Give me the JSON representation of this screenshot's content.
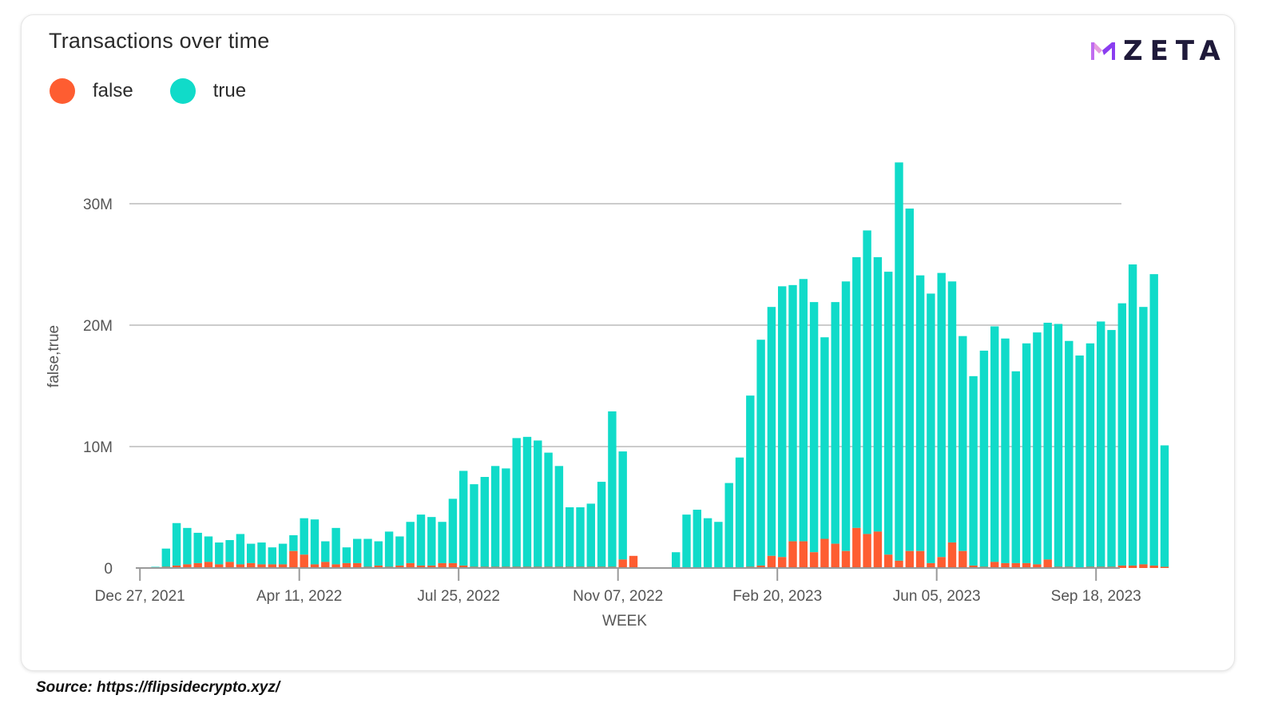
{
  "title": "Transactions over time",
  "source": "Source: https://flipsidecrypto.xyz/",
  "logo": {
    "text": "ZETA"
  },
  "colors": {
    "false": "#fe5d31",
    "true": "#10dbc9",
    "grid": "#cccccc"
  },
  "chart_data": {
    "type": "bar",
    "stacked": true,
    "title": "Transactions over time",
    "xlabel": "WEEK",
    "ylabel": "false,true",
    "ylim": [
      0,
      34000000
    ],
    "yticks": [
      0,
      10000000,
      20000000,
      30000000
    ],
    "ytick_labels": [
      "0",
      "10M",
      "20M",
      "30M"
    ],
    "xtick_labels": [
      "Dec 27, 2021",
      "Apr 11, 2022",
      "Jul 25, 2022",
      "Nov 07, 2022",
      "Feb 20, 2023",
      "Jun 05, 2023",
      "Sep 18, 2023"
    ],
    "xtick_index": [
      0,
      15,
      30,
      45,
      60,
      75,
      90
    ],
    "legend": "top-left",
    "grid": true,
    "series": [
      {
        "name": "false",
        "values": [
          0,
          0,
          100000,
          200000,
          300000,
          400000,
          500000,
          300000,
          500000,
          300000,
          400000,
          300000,
          300000,
          300000,
          1400000,
          1100000,
          300000,
          500000,
          300000,
          400000,
          400000,
          100000,
          200000,
          100000,
          200000,
          400000,
          200000,
          200000,
          400000,
          400000,
          200000,
          100000,
          100000,
          100000,
          100000,
          100000,
          100000,
          100000,
          100000,
          100000,
          100000,
          100000,
          100000,
          100000,
          100000,
          700000,
          1000000,
          0,
          0,
          0,
          0,
          0,
          0,
          0,
          0,
          0,
          0,
          100000,
          200000,
          1000000,
          900000,
          2200000,
          2200000,
          1300000,
          2400000,
          2000000,
          1400000,
          3300000,
          2800000,
          3000000,
          1100000,
          600000,
          1400000,
          1400000,
          400000,
          900000,
          2100000,
          1400000,
          200000,
          100000,
          500000,
          400000,
          400000,
          400000,
          300000,
          700000,
          100000,
          100000,
          0,
          100000,
          100000,
          100000,
          200000,
          200000,
          300000,
          200000,
          100000
        ]
      },
      {
        "name": "true",
        "values": [
          0,
          100000,
          1500000,
          3500000,
          3000000,
          2500000,
          2100000,
          1800000,
          1800000,
          2500000,
          1600000,
          1800000,
          1400000,
          1700000,
          1300000,
          3000000,
          3700000,
          1700000,
          3000000,
          1300000,
          2000000,
          2300000,
          2000000,
          2900000,
          2400000,
          3400000,
          4200000,
          4000000,
          3400000,
          5300000,
          7800000,
          6800000,
          7400000,
          8300000,
          8100000,
          10600000,
          10700000,
          10400000,
          9400000,
          8300000,
          4900000,
          4900000,
          5200000,
          7000000,
          12800000,
          8900000,
          0,
          0,
          0,
          0,
          1300000,
          4400000,
          4800000,
          4100000,
          3800000,
          7000000,
          9100000,
          14100000,
          18600000,
          20500000,
          22300000,
          21100000,
          21600000,
          20600000,
          16600000,
          19900000,
          22200000,
          22300000,
          25000000,
          22600000,
          23300000,
          32800000,
          28200000,
          22700000,
          22200000,
          23400000,
          21500000,
          17700000,
          15600000,
          17800000,
          19400000,
          18500000,
          15800000,
          18100000,
          19100000,
          19500000,
          20000000,
          18600000,
          17500000,
          18400000,
          20200000,
          19500000,
          21600000,
          24800000,
          21200000,
          24000000,
          10000000
        ]
      }
    ]
  }
}
